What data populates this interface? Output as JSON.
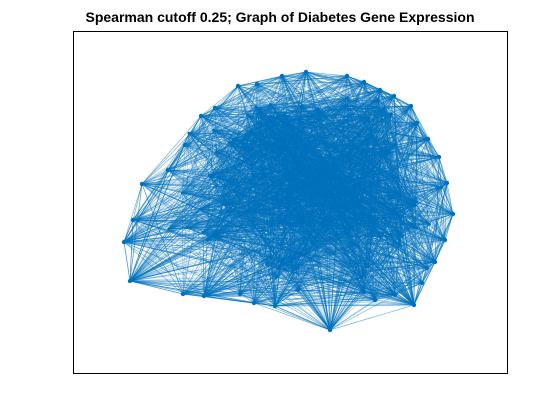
{
  "title": "Spearman cutoff 0.25; Graph of Diabetes Gene Expression",
  "graph": {
    "node_color": "#0072BD",
    "edge_color": "#0072BD",
    "axes_box": "#000000",
    "layout": "force-directed",
    "density": "dense"
  }
}
